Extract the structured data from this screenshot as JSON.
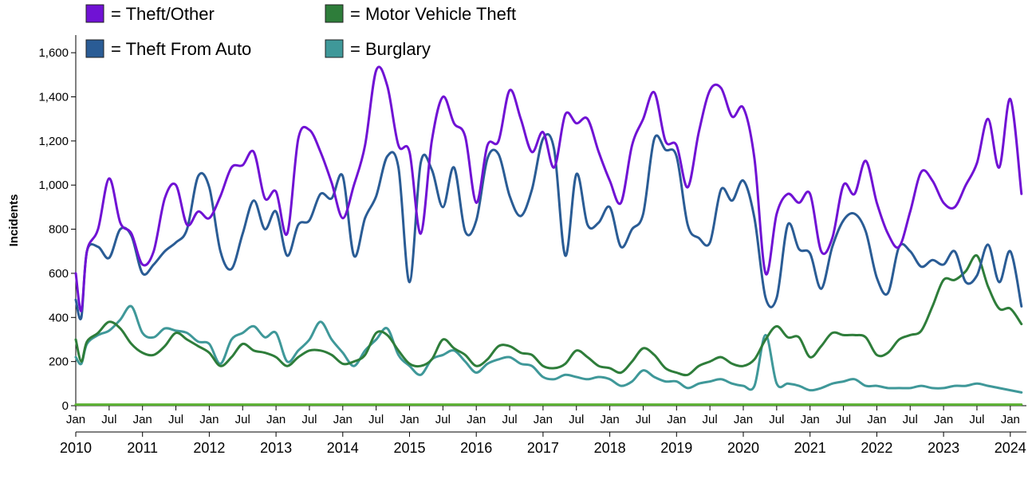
{
  "chart_data": {
    "type": "line",
    "ylabel": "Incidents",
    "xlabel": "",
    "ylim": [
      0,
      1680
    ],
    "y_ticks": [
      "0",
      "200",
      "400",
      "600",
      "800",
      "1,000",
      "1,200",
      "1,400",
      "1,600"
    ],
    "y_tick_values": [
      0,
      200,
      400,
      600,
      800,
      1000,
      1200,
      1400,
      1600
    ],
    "x_month_ticks": [
      "Jan",
      "Jul",
      "Jan",
      "Jul",
      "Jan",
      "Jul",
      "Jan",
      "Jul",
      "Jan",
      "Jul",
      "Jan",
      "Jul",
      "Jan",
      "Jul",
      "Jan",
      "Jul",
      "Jan",
      "Jul",
      "Jan",
      "Jul",
      "Jan",
      "Jul",
      "Jan",
      "Jul",
      "Jan",
      "Jul",
      "Jan",
      "Jul",
      "Jan"
    ],
    "x_year_ticks": [
      "2010",
      "2011",
      "2012",
      "2013",
      "2014",
      "2015",
      "2016",
      "2017",
      "2018",
      "2019",
      "2020",
      "2021",
      "2022",
      "2023",
      "2024"
    ],
    "x_start": "2010-01",
    "x_end": "2024-03",
    "grid": false,
    "legend_position": "top-left",
    "legend": [
      {
        "marker": "■",
        "label": "= Theft/Other"
      },
      {
        "marker": "■",
        "label": "= Motor Vehicle Theft"
      },
      {
        "marker": "■",
        "label": "= Theft From Auto"
      },
      {
        "marker": "■",
        "label": "= Burglary"
      }
    ],
    "series": [
      {
        "name": "Theft/Other",
        "color": "#7012d4",
        "x": [
          "2010-01",
          "2010-02",
          "2010-03",
          "2010-05",
          "2010-07",
          "2010-09",
          "2010-11",
          "2011-01",
          "2011-03",
          "2011-05",
          "2011-07",
          "2011-09",
          "2011-11",
          "2012-01",
          "2012-03",
          "2012-05",
          "2012-07",
          "2012-09",
          "2012-11",
          "2013-01",
          "2013-03",
          "2013-05",
          "2013-07",
          "2013-09",
          "2013-11",
          "2014-01",
          "2014-03",
          "2014-05",
          "2014-07",
          "2014-09",
          "2014-11",
          "2015-01",
          "2015-03",
          "2015-05",
          "2015-07",
          "2015-09",
          "2015-11",
          "2016-01",
          "2016-03",
          "2016-05",
          "2016-07",
          "2016-09",
          "2016-11",
          "2017-01",
          "2017-03",
          "2017-05",
          "2017-07",
          "2017-09",
          "2017-11",
          "2018-01",
          "2018-03",
          "2018-05",
          "2018-07",
          "2018-09",
          "2018-11",
          "2019-01",
          "2019-03",
          "2019-05",
          "2019-07",
          "2019-09",
          "2019-11",
          "2020-01",
          "2020-03",
          "2020-05",
          "2020-07",
          "2020-09",
          "2020-11",
          "2021-01",
          "2021-03",
          "2021-05",
          "2021-07",
          "2021-09",
          "2021-11",
          "2022-01",
          "2022-03",
          "2022-05",
          "2022-07",
          "2022-09",
          "2022-11",
          "2023-01",
          "2023-03",
          "2023-05",
          "2023-07",
          "2023-09",
          "2023-11",
          "2024-01",
          "2024-03"
        ],
        "values": [
          600,
          430,
          700,
          800,
          1030,
          830,
          780,
          640,
          700,
          940,
          1000,
          820,
          880,
          850,
          950,
          1080,
          1090,
          1150,
          940,
          970,
          780,
          1210,
          1250,
          1150,
          1010,
          850,
          1000,
          1180,
          1520,
          1450,
          1180,
          1150,
          780,
          1200,
          1400,
          1280,
          1220,
          920,
          1180,
          1200,
          1430,
          1300,
          1150,
          1240,
          1080,
          1320,
          1280,
          1300,
          1150,
          1020,
          920,
          1180,
          1300,
          1420,
          1200,
          1180,
          990,
          1240,
          1430,
          1440,
          1310,
          1350,
          1120,
          600,
          870,
          960,
          920,
          960,
          700,
          760,
          1000,
          960,
          1110,
          920,
          780,
          720,
          880,
          1060,
          1020,
          920,
          900,
          1000,
          1100,
          1300,
          1080,
          1390,
          960
        ]
      },
      {
        "name": "Theft From Auto",
        "color": "#2a5c95",
        "x": [
          "2010-01",
          "2010-02",
          "2010-03",
          "2010-05",
          "2010-07",
          "2010-09",
          "2010-11",
          "2011-01",
          "2011-03",
          "2011-05",
          "2011-07",
          "2011-09",
          "2011-11",
          "2012-01",
          "2012-03",
          "2012-05",
          "2012-07",
          "2012-09",
          "2012-11",
          "2013-01",
          "2013-03",
          "2013-05",
          "2013-07",
          "2013-09",
          "2013-11",
          "2014-01",
          "2014-03",
          "2014-05",
          "2014-07",
          "2014-09",
          "2014-11",
          "2015-01",
          "2015-03",
          "2015-05",
          "2015-07",
          "2015-09",
          "2015-11",
          "2016-01",
          "2016-03",
          "2016-05",
          "2016-07",
          "2016-09",
          "2016-11",
          "2017-01",
          "2017-03",
          "2017-05",
          "2017-07",
          "2017-09",
          "2017-11",
          "2018-01",
          "2018-03",
          "2018-05",
          "2018-07",
          "2018-09",
          "2018-11",
          "2019-01",
          "2019-03",
          "2019-05",
          "2019-07",
          "2019-09",
          "2019-11",
          "2020-01",
          "2020-03",
          "2020-05",
          "2020-07",
          "2020-09",
          "2020-11",
          "2021-01",
          "2021-03",
          "2021-05",
          "2021-07",
          "2021-09",
          "2021-11",
          "2022-01",
          "2022-03",
          "2022-05",
          "2022-07",
          "2022-09",
          "2022-11",
          "2023-01",
          "2023-03",
          "2023-05",
          "2023-07",
          "2023-09",
          "2023-11",
          "2024-01",
          "2024-03"
        ],
        "values": [
          480,
          400,
          700,
          720,
          670,
          800,
          770,
          600,
          640,
          700,
          740,
          800,
          1040,
          990,
          700,
          620,
          780,
          930,
          800,
          880,
          680,
          820,
          840,
          960,
          940,
          1040,
          680,
          850,
          950,
          1130,
          1080,
          560,
          1100,
          1070,
          900,
          1080,
          790,
          840,
          1120,
          1140,
          950,
          860,
          980,
          1210,
          1160,
          680,
          1050,
          820,
          830,
          900,
          720,
          800,
          870,
          1210,
          1160,
          1130,
          820,
          760,
          740,
          980,
          930,
          1020,
          850,
          490,
          490,
          820,
          710,
          690,
          530,
          720,
          840,
          870,
          790,
          580,
          510,
          720,
          700,
          630,
          660,
          640,
          700,
          560,
          590,
          730,
          560,
          700,
          450
        ]
      },
      {
        "name": "Motor Vehicle Theft",
        "color": "#2e7d3a",
        "x": [
          "2010-01",
          "2010-02",
          "2010-03",
          "2010-05",
          "2010-07",
          "2010-09",
          "2010-11",
          "2011-01",
          "2011-03",
          "2011-05",
          "2011-07",
          "2011-09",
          "2011-11",
          "2012-01",
          "2012-03",
          "2012-05",
          "2012-07",
          "2012-09",
          "2012-11",
          "2013-01",
          "2013-03",
          "2013-05",
          "2013-07",
          "2013-09",
          "2013-11",
          "2014-01",
          "2014-03",
          "2014-05",
          "2014-07",
          "2014-09",
          "2014-11",
          "2015-01",
          "2015-03",
          "2015-05",
          "2015-07",
          "2015-09",
          "2015-11",
          "2016-01",
          "2016-03",
          "2016-05",
          "2016-07",
          "2016-09",
          "2016-11",
          "2017-01",
          "2017-03",
          "2017-05",
          "2017-07",
          "2017-09",
          "2017-11",
          "2018-01",
          "2018-03",
          "2018-05",
          "2018-07",
          "2018-09",
          "2018-11",
          "2019-01",
          "2019-03",
          "2019-05",
          "2019-07",
          "2019-09",
          "2019-11",
          "2020-01",
          "2020-03",
          "2020-05",
          "2020-07",
          "2020-09",
          "2020-11",
          "2021-01",
          "2021-03",
          "2021-05",
          "2021-07",
          "2021-09",
          "2021-11",
          "2022-01",
          "2022-03",
          "2022-05",
          "2022-07",
          "2022-09",
          "2022-11",
          "2023-01",
          "2023-03",
          "2023-05",
          "2023-07",
          "2023-09",
          "2023-11",
          "2024-01",
          "2024-03"
        ],
        "values": [
          300,
          200,
          290,
          330,
          380,
          350,
          280,
          240,
          230,
          270,
          330,
          300,
          270,
          240,
          180,
          220,
          280,
          250,
          240,
          220,
          180,
          220,
          250,
          250,
          230,
          190,
          200,
          230,
          330,
          320,
          250,
          190,
          180,
          210,
          300,
          260,
          230,
          180,
          210,
          270,
          270,
          240,
          230,
          180,
          170,
          190,
          250,
          220,
          180,
          170,
          150,
          200,
          260,
          230,
          170,
          150,
          140,
          180,
          200,
          220,
          190,
          180,
          210,
          300,
          360,
          310,
          310,
          220,
          270,
          330,
          320,
          320,
          310,
          230,
          240,
          300,
          320,
          340,
          450,
          570,
          570,
          610,
          680,
          540,
          440,
          440,
          370
        ]
      },
      {
        "name": "Burglary",
        "color": "#3f9899",
        "x": [
          "2010-01",
          "2010-02",
          "2010-03",
          "2010-05",
          "2010-07",
          "2010-09",
          "2010-11",
          "2011-01",
          "2011-03",
          "2011-05",
          "2011-07",
          "2011-09",
          "2011-11",
          "2012-01",
          "2012-03",
          "2012-05",
          "2012-07",
          "2012-09",
          "2012-11",
          "2013-01",
          "2013-03",
          "2013-05",
          "2013-07",
          "2013-09",
          "2013-11",
          "2014-01",
          "2014-03",
          "2014-05",
          "2014-07",
          "2014-09",
          "2014-11",
          "2015-01",
          "2015-03",
          "2015-05",
          "2015-07",
          "2015-09",
          "2015-11",
          "2016-01",
          "2016-03",
          "2016-05",
          "2016-07",
          "2016-09",
          "2016-11",
          "2017-01",
          "2017-03",
          "2017-05",
          "2017-07",
          "2017-09",
          "2017-11",
          "2018-01",
          "2018-03",
          "2018-05",
          "2018-07",
          "2018-09",
          "2018-11",
          "2019-01",
          "2019-03",
          "2019-05",
          "2019-07",
          "2019-09",
          "2019-11",
          "2020-01",
          "2020-03",
          "2020-05",
          "2020-07",
          "2020-09",
          "2020-11",
          "2021-01",
          "2021-03",
          "2021-05",
          "2021-07",
          "2021-09",
          "2021-11",
          "2022-01",
          "2022-03",
          "2022-05",
          "2022-07",
          "2022-09",
          "2022-11",
          "2023-01",
          "2023-03",
          "2023-05",
          "2023-07",
          "2023-09",
          "2023-11",
          "2024-01",
          "2024-03"
        ],
        "values": [
          220,
          190,
          280,
          320,
          340,
          390,
          450,
          330,
          310,
          350,
          340,
          330,
          290,
          280,
          190,
          300,
          330,
          360,
          310,
          330,
          200,
          250,
          300,
          380,
          300,
          240,
          180,
          250,
          300,
          350,
          230,
          180,
          140,
          210,
          230,
          250,
          200,
          150,
          190,
          210,
          220,
          190,
          180,
          130,
          120,
          140,
          130,
          120,
          130,
          120,
          90,
          110,
          160,
          130,
          110,
          110,
          80,
          100,
          110,
          120,
          100,
          90,
          90,
          320,
          100,
          100,
          90,
          70,
          80,
          100,
          110,
          120,
          90,
          90,
          80,
          80,
          80,
          90,
          80,
          80,
          90,
          90,
          100,
          90,
          80,
          70,
          60
        ]
      },
      {
        "name": "",
        "color": "#5ab030",
        "x": [
          "2010-01",
          "2024-03"
        ],
        "values": [
          5,
          5
        ]
      }
    ]
  }
}
